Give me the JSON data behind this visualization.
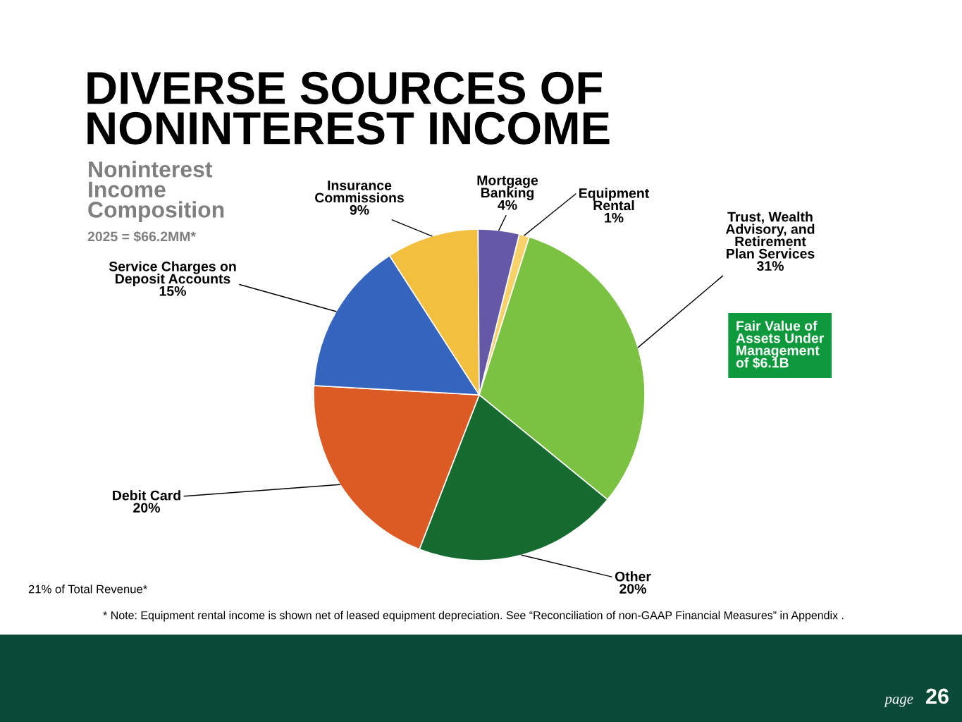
{
  "chart_data": {
    "type": "pie",
    "title": "DIVERSE SOURCES OF NONINTEREST INCOME",
    "subtitle": "Noninterest Income Composition",
    "categories": [
      "Equipment Rental",
      "Trust, Wealth Advisory, and Retirement Plan Services",
      "Other",
      "Debit Card",
      "Service Charges on Deposit Accounts",
      "Insurance Commissions",
      "Mortgage Banking"
    ],
    "values": [
      1,
      31,
      20,
      20,
      15,
      9,
      4
    ],
    "value_labels": [
      "1%",
      "31%",
      "20%",
      "20%",
      "15%",
      "9%",
      "4%"
    ],
    "colors": [
      "#f7d26a",
      "#7cc242",
      "#156b30",
      "#dc5a24",
      "#3565be",
      "#f2c03e",
      "#6558a6"
    ],
    "annotations": [
      "2025 = $66.2MM*",
      "Fair Value of Assets Under Management of $6.1B",
      "21% of Total Revenue*",
      "* Note: Equipment rental income is shown net of leased equipment depreciation. See “Reconciliation of non-GAAP Financial Measures” in Appendix .",
      "page",
      "26"
    ]
  }
}
